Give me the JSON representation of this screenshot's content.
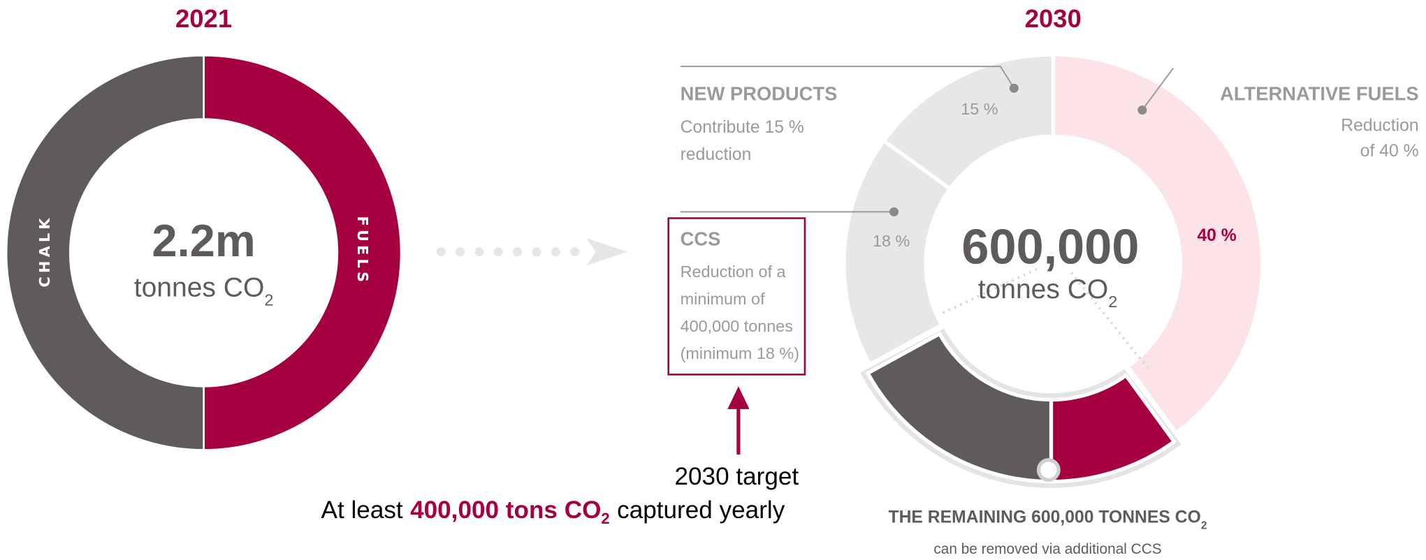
{
  "left": {
    "year": "2021",
    "center_value": "2.2m",
    "center_unit": "tonnes CO",
    "center_sub": "2",
    "segments": [
      {
        "name": "FUELS",
        "value": 50,
        "color": "#a50040"
      },
      {
        "name": "CHALK",
        "value": 50,
        "color": "#5f5a5b"
      }
    ]
  },
  "right": {
    "year": "2030",
    "center_value": "600,000",
    "center_unit": "tonnes CO",
    "center_sub": "2",
    "segments": [
      {
        "value": 40,
        "label": "40 %",
        "color": "#fbe3e8"
      },
      {
        "value": 10,
        "color": "#a50040",
        "exploded": true
      },
      {
        "value": 17,
        "color": "#5f5a5b",
        "exploded": true
      },
      {
        "value": 18,
        "label": "18 %",
        "color": "#e7e7e7"
      },
      {
        "value": 15,
        "label": "15 %",
        "color": "#e7e7e7"
      }
    ]
  },
  "new_products": {
    "title": "NEW PRODUCTS",
    "lines": [
      "Contribute 15 %",
      "reduction"
    ]
  },
  "ccs": {
    "title": "CCS",
    "lines": [
      "Reduction of a",
      "minimum of",
      "400,000 tonnes",
      "(minimum 18 %)"
    ]
  },
  "alternative_fuels": {
    "title": "ALTERNATIVE FUELS",
    "lines": [
      "Reduction",
      "of 40 %"
    ]
  },
  "remaining": {
    "title": "THE REMAINING 600,000 TONNES CO",
    "title_sub": "2",
    "line": "can be removed via additional CCS"
  },
  "target": {
    "line1": "2030 target",
    "pre": "At least",
    "bold": "400,000 tons CO",
    "bold_sub": "2",
    "post": "captured yearly"
  }
}
